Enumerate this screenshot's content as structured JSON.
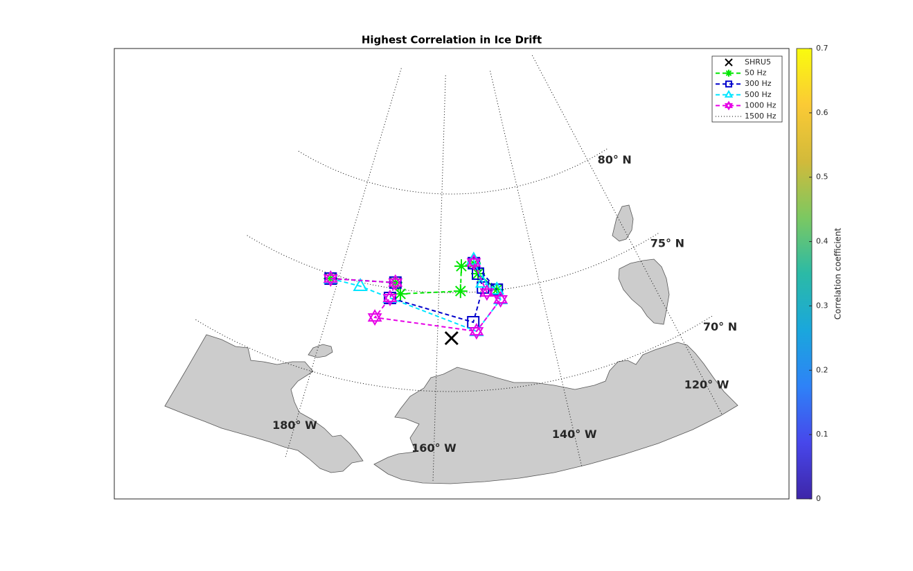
{
  "chart_data": {
    "type": "map",
    "title": "Highest Correlation in Ice Drift",
    "graticule": {
      "lats": [
        70,
        75,
        80
      ],
      "lat_labels": [
        "70° N",
        "75° N",
        "80° N"
      ],
      "lons": [
        -180,
        -160,
        -140,
        -120
      ],
      "lon_labels": [
        "180° W",
        "160° W",
        "140° W",
        "120° W"
      ]
    },
    "series": [
      {
        "name": "SHRU5",
        "color": "#000000",
        "marker": "x",
        "linestyle": "none",
        "lon": [
          -157.5
        ],
        "lat": [
          72.7
        ]
      },
      {
        "name": "50 Hz",
        "color": "#00e600",
        "marker": "asterisk",
        "linestyle": "dashed",
        "lon": [
          -181.5,
          -168.8,
          -167.5,
          -155.7,
          -155.4,
          -152.7,
          -152.0,
          -148.5
        ],
        "lat": [
          74.77,
          75.31,
          74.78,
          75.08,
          76.34,
          76.46,
          75.92,
          75.02
        ]
      },
      {
        "name": "300 Hz",
        "color": "#0000cc",
        "marker": "square",
        "linestyle": "dashed",
        "lon": [
          -181.5,
          -168.8,
          -169.4,
          -153.5,
          -151.2,
          -152.0,
          -152.7,
          -148.5
        ],
        "lat": [
          74.77,
          75.31,
          74.5,
          73.48,
          75.2,
          75.92,
          76.46,
          75.02
        ]
      },
      {
        "name": "500 Hz",
        "color": "#00e5ff",
        "marker": "triangle",
        "linestyle": "dashed",
        "lon": [
          -181.5,
          -175.5,
          -169.4,
          -153.0,
          -148.0,
          -148.5,
          -151.2,
          -152.7
        ],
        "lat": [
          74.77,
          74.8,
          74.5,
          73.01,
          74.51,
          75.02,
          75.44,
          76.63
        ]
      },
      {
        "name": "1000 Hz",
        "color": "#e600e6",
        "marker": "hexagram",
        "linestyle": "dashed",
        "lon": [
          -181.5,
          -168.8,
          -169.4,
          -171.6,
          -153.0,
          -148.0,
          -150.5,
          -152.7
        ],
        "lat": [
          74.77,
          75.31,
          74.5,
          73.4,
          73.01,
          74.51,
          74.93,
          76.5
        ]
      },
      {
        "name": "1500 Hz",
        "color": "#000000",
        "marker": "none",
        "linestyle": "dotted",
        "lon": [],
        "lat": []
      }
    ],
    "colorbar": {
      "label": "Correlation coefficient",
      "lim": [
        0,
        0.7
      ],
      "ticks": [
        0,
        0.1,
        0.2,
        0.3,
        0.4,
        0.5,
        0.6,
        0.7
      ]
    }
  }
}
